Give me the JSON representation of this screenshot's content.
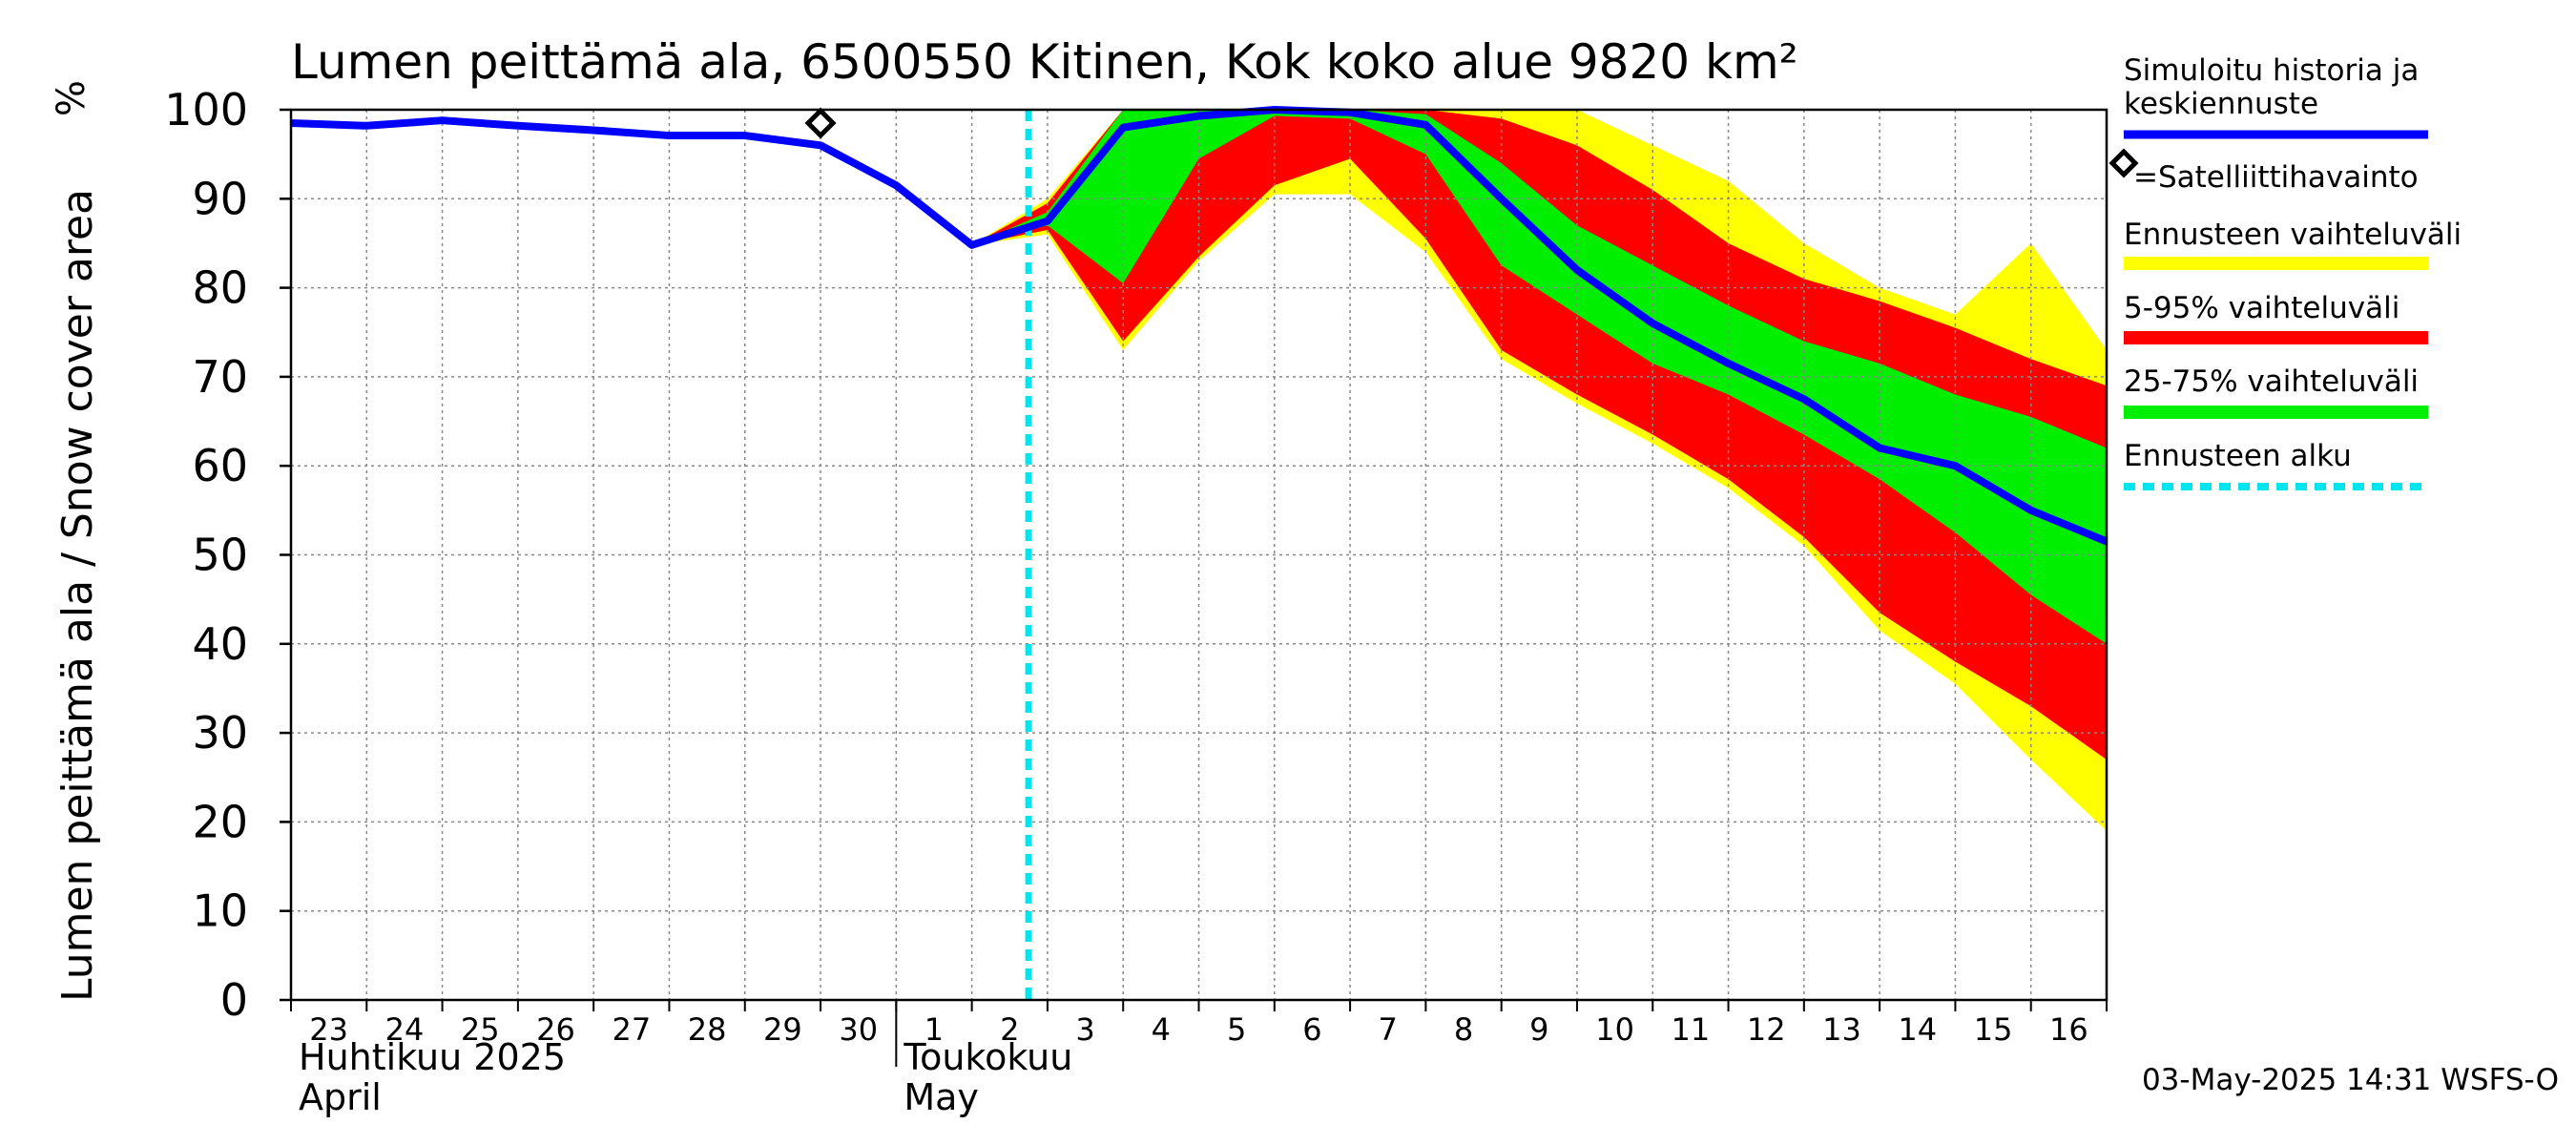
{
  "chart_data": {
    "type": "area",
    "title": "Lumen peittämä ala, 6500550 Kitinen, Kok koko alue 9820 km²",
    "ylabel": "Lumen peittämä ala / Snow cover area",
    "yunit": "%",
    "ylim": [
      0,
      100
    ],
    "yticks": [
      0,
      10,
      20,
      30,
      40,
      50,
      60,
      70,
      80,
      90,
      100
    ],
    "xlim": [
      "2025-04-23",
      "2025-05-17"
    ],
    "xtick_labels": [
      "23",
      "24",
      "25",
      "26",
      "27",
      "28",
      "29",
      "30",
      "1",
      "2",
      "3",
      "4",
      "5",
      "6",
      "7",
      "8",
      "9",
      "10",
      "11",
      "12",
      "13",
      "14",
      "15",
      "16"
    ],
    "month_labels": [
      {
        "fi": "Huhtikuu  2025",
        "en": "April",
        "start": "2025-04-23"
      },
      {
        "fi": "Toukokuu",
        "en": "May",
        "start": "2025-05-01"
      }
    ],
    "grid": true,
    "legend_position": "right",
    "timestamp": "03-May-2025 14:31 WSFS-O",
    "colors": {
      "history": "#0000ff",
      "range_total": "#ffff00",
      "range_5_95": "#ff0000",
      "range_25_75": "#00ee00",
      "forecast_start": "#00e5ee",
      "satellite": "#000000",
      "grid": "#888888"
    },
    "forecast_start": "2025-05-02T18:00",
    "series": [
      {
        "name": "Simuloitu historia ja keskiennuste",
        "x": [
          "2025-04-23",
          "2025-04-24",
          "2025-04-25",
          "2025-04-26",
          "2025-04-27",
          "2025-04-28",
          "2025-04-29",
          "2025-04-30",
          "2025-05-01",
          "2025-05-02",
          "2025-05-03",
          "2025-05-04",
          "2025-05-05",
          "2025-05-06",
          "2025-05-07",
          "2025-05-08",
          "2025-05-09",
          "2025-05-10",
          "2025-05-11",
          "2025-05-12",
          "2025-05-13",
          "2025-05-14",
          "2025-05-15",
          "2025-05-16",
          "2025-05-17"
        ],
        "values": [
          98.5,
          98.2,
          98.8,
          98.2,
          97.7,
          97.1,
          97.1,
          96,
          91.5,
          84.8,
          87.5,
          98,
          99.3,
          100,
          99.7,
          98.3,
          90,
          82,
          76,
          71.5,
          67.5,
          62,
          60,
          55,
          51.5
        ]
      },
      {
        "name": "Ennusteen vaihteluväli",
        "x": [
          "2025-05-02",
          "2025-05-03",
          "2025-05-04",
          "2025-05-05",
          "2025-05-06",
          "2025-05-07",
          "2025-05-08",
          "2025-05-09",
          "2025-05-10",
          "2025-05-11",
          "2025-05-12",
          "2025-05-13",
          "2025-05-14",
          "2025-05-15",
          "2025-05-16",
          "2025-05-17"
        ],
        "upper": [
          84.8,
          90,
          100,
          100,
          100,
          100,
          100,
          100,
          100,
          96,
          92,
          85,
          80,
          77,
          85,
          73
        ],
        "lower": [
          84.8,
          86,
          73,
          83,
          90.5,
          90.5,
          84,
          72,
          67,
          62.5,
          57.5,
          51,
          41.5,
          35.5,
          27,
          19
        ]
      },
      {
        "name": "5-95% vaihteluväli",
        "x": [
          "2025-05-02",
          "2025-05-03",
          "2025-05-04",
          "2025-05-05",
          "2025-05-06",
          "2025-05-07",
          "2025-05-08",
          "2025-05-09",
          "2025-05-10",
          "2025-05-11",
          "2025-05-12",
          "2025-05-13",
          "2025-05-14",
          "2025-05-15",
          "2025-05-16",
          "2025-05-17"
        ],
        "upper": [
          84.8,
          89.5,
          100,
          100,
          100,
          100,
          100,
          99,
          96,
          91,
          85,
          81,
          78.5,
          75.5,
          72,
          69
        ],
        "lower": [
          84.8,
          86.5,
          74,
          83.5,
          91.5,
          94.5,
          85.5,
          73,
          68,
          63.5,
          58.5,
          52,
          43.5,
          38,
          33,
          27
        ]
      },
      {
        "name": "25-75% vaihteluväli",
        "x": [
          "2025-05-02",
          "2025-05-03",
          "2025-05-04",
          "2025-05-05",
          "2025-05-06",
          "2025-05-07",
          "2025-05-08",
          "2025-05-09",
          "2025-05-10",
          "2025-05-11",
          "2025-05-12",
          "2025-05-13",
          "2025-05-14",
          "2025-05-15",
          "2025-05-16",
          "2025-05-17"
        ],
        "upper": [
          84.8,
          88.5,
          100,
          100,
          100,
          100,
          99.5,
          94,
          87,
          82.5,
          78,
          74,
          71.5,
          68,
          65.5,
          62
        ],
        "lower": [
          84.8,
          87,
          80.5,
          94.5,
          99.3,
          99,
          95,
          82.5,
          77,
          71.5,
          68,
          63.5,
          58.5,
          52.5,
          45.5,
          40
        ]
      }
    ],
    "satellite_observations": [
      {
        "x": "2025-04-30",
        "y": 98.5
      }
    ],
    "legend": [
      {
        "label": "Simuloitu historia ja keskiennuste",
        "style": "line",
        "color": "#0000ff"
      },
      {
        "label": "=Satelliittihavainto",
        "style": "diamond",
        "color": "#000000"
      },
      {
        "label": "Ennusteen vaihteluväli",
        "style": "bar",
        "color": "#ffff00"
      },
      {
        "label": "5-95% vaihteluväli",
        "style": "bar",
        "color": "#ff0000"
      },
      {
        "label": "25-75% vaihteluväli",
        "style": "bar",
        "color": "#00ee00"
      },
      {
        "label": "Ennusteen alku",
        "style": "dashed",
        "color": "#00e5ee"
      }
    ]
  }
}
